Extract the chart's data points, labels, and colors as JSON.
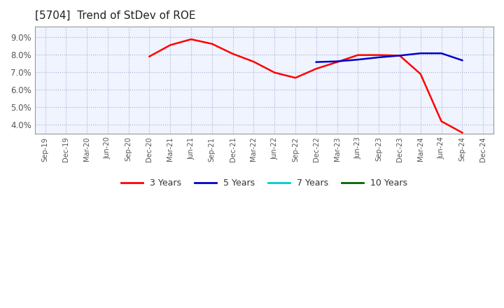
{
  "title": "[5704]  Trend of StDev of ROE",
  "title_fontsize": 11,
  "background_color": "#ffffff",
  "plot_bg_color": "#f0f4ff",
  "grid_color": "#aaaacc",
  "ylim": [
    0.035,
    0.096
  ],
  "yticks": [
    0.04,
    0.05,
    0.06,
    0.07,
    0.08,
    0.09
  ],
  "x_labels": [
    "Sep-19",
    "Dec-19",
    "Mar-20",
    "Jun-20",
    "Sep-20",
    "Dec-20",
    "Mar-21",
    "Jun-21",
    "Sep-21",
    "Dec-21",
    "Mar-22",
    "Jun-22",
    "Sep-22",
    "Dec-22",
    "Mar-23",
    "Jun-23",
    "Sep-23",
    "Dec-23",
    "Mar-24",
    "Jun-24",
    "Sep-24",
    "Dec-24"
  ],
  "y3": [
    null,
    null,
    null,
    null,
    null,
    0.079,
    0.0855,
    0.0888,
    0.0862,
    0.0805,
    0.076,
    0.0698,
    0.0668,
    0.072,
    0.0758,
    0.0798,
    0.0798,
    0.0795,
    0.069,
    0.042,
    0.0355,
    null
  ],
  "y5": [
    null,
    null,
    null,
    null,
    null,
    null,
    null,
    null,
    null,
    null,
    null,
    null,
    null,
    0.0758,
    0.0762,
    0.0772,
    0.0785,
    0.0795,
    0.0808,
    0.0808,
    0.0768,
    null
  ],
  "y7": [
    null,
    null,
    null,
    null,
    null,
    null,
    null,
    null,
    null,
    null,
    null,
    null,
    null,
    null,
    null,
    null,
    null,
    null,
    null,
    null,
    null,
    null
  ],
  "y10": [
    null,
    null,
    null,
    null,
    null,
    null,
    null,
    null,
    null,
    null,
    null,
    null,
    null,
    null,
    null,
    null,
    null,
    null,
    null,
    null,
    null,
    null
  ],
  "color_3y": "#ff0000",
  "color_5y": "#0000cc",
  "color_7y": "#00cccc",
  "color_10y": "#006600",
  "legend_labels": [
    "3 Years",
    "5 Years",
    "7 Years",
    "10 Years"
  ],
  "legend_colors": [
    "#ff0000",
    "#0000cc",
    "#00cccc",
    "#006600"
  ]
}
